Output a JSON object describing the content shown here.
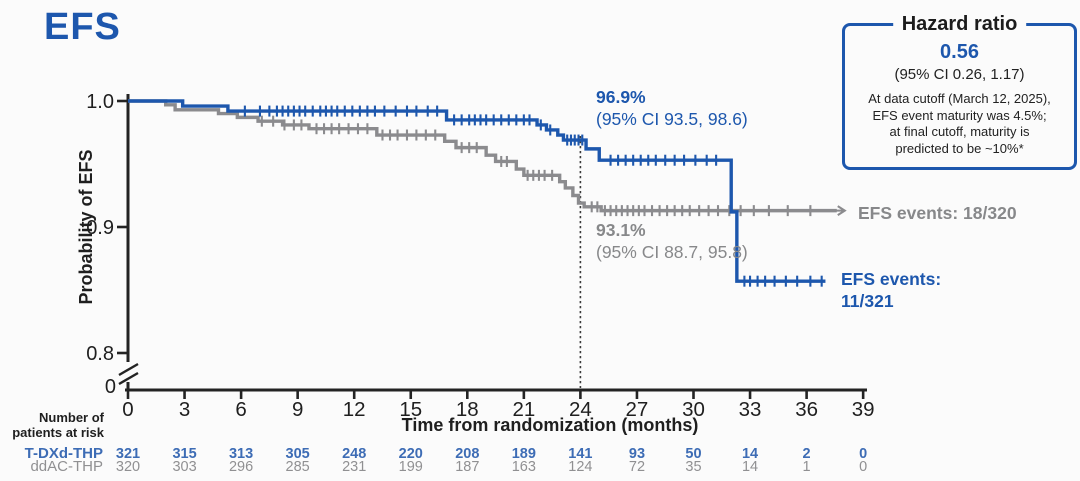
{
  "title": "EFS",
  "colors": {
    "blue": "#1d57ad",
    "gray": "#8b8b8e",
    "gray_text": "#87888a",
    "risk_blue": "#3d6cb5",
    "risk_gray": "#909092",
    "axis": "#232323",
    "background": "#fbfbfb"
  },
  "hazard_box": {
    "title": "Hazard ratio",
    "value": "0.56",
    "ci": "(95% CI 0.26, 1.17)",
    "note_lines": [
      "At data cutoff (March 12, 2025),",
      "EFS event maturity was 4.5%;",
      "at final cutoff, maturity is",
      "predicted to be ~10%*"
    ]
  },
  "chart_data": {
    "type": "line",
    "subtype": "kaplan-meier-step",
    "title": "EFS",
    "xlabel": "Time from randomization (months)",
    "ylabel": "Probability of EFS",
    "x_ticks": [
      0,
      3,
      6,
      9,
      12,
      15,
      18,
      21,
      24,
      27,
      30,
      33,
      36,
      39
    ],
    "y_ticks": [
      1.0,
      0.9,
      0.8
    ],
    "y_zero_label": "0",
    "y_axis_break": true,
    "ylim_shown": [
      0.8,
      1.0
    ],
    "landmark_month": 24,
    "series": [
      {
        "name": "T-DXd-THP",
        "color_key": "blue",
        "landmark_label": "96.9%",
        "landmark_ci": "(95% CI 93.5, 98.6)",
        "events_label_lines": [
          "EFS events:",
          "11/321"
        ],
        "events": "11/321",
        "end_month": 37.0,
        "end_arrow": false,
        "steps": [
          [
            0,
            1.0
          ],
          [
            2.9,
            0.996
          ],
          [
            5.3,
            0.992
          ],
          [
            16.9,
            0.985
          ],
          [
            21.7,
            0.981
          ],
          [
            22.2,
            0.977
          ],
          [
            22.8,
            0.973
          ],
          [
            23.1,
            0.969
          ],
          [
            24.3,
            0.962
          ],
          [
            25.0,
            0.953
          ],
          [
            32.0,
            0.912
          ],
          [
            32.3,
            0.857
          ]
        ],
        "censor_months": [
          6.2,
          7.0,
          7.5,
          7.9,
          8.2,
          8.5,
          8.8,
          9.1,
          9.4,
          9.8,
          10.2,
          10.5,
          10.8,
          11.1,
          11.5,
          11.9,
          12.3,
          12.7,
          13.1,
          13.6,
          14.2,
          14.8,
          15.3,
          15.9,
          16.4,
          17.3,
          17.7,
          18.1,
          18.4,
          18.7,
          19.0,
          19.4,
          19.8,
          20.2,
          20.6,
          21.0,
          21.3,
          21.9,
          22.4,
          23.3,
          23.5,
          23.7,
          23.9,
          24.1,
          25.6,
          26.0,
          26.4,
          26.8,
          27.2,
          27.6,
          28.0,
          28.5,
          29.0,
          29.5,
          30.1,
          30.7,
          31.2,
          32.7,
          33.0,
          33.4,
          33.8,
          34.3,
          34.9,
          35.5,
          36.2,
          36.8
        ]
      },
      {
        "name": "ddAC-THP",
        "color_key": "gray",
        "landmark_label": "93.1%",
        "landmark_ci": "(95% CI 88.7, 95.8)",
        "events_label_lines": [
          "EFS events: 18/320"
        ],
        "events": "18/320",
        "end_month": 37.6,
        "end_arrow": true,
        "steps": [
          [
            0,
            1.0
          ],
          [
            2.0,
            0.997
          ],
          [
            2.5,
            0.993
          ],
          [
            4.8,
            0.99
          ],
          [
            5.8,
            0.987
          ],
          [
            6.9,
            0.984
          ],
          [
            8.2,
            0.981
          ],
          [
            9.6,
            0.978
          ],
          [
            13.2,
            0.973
          ],
          [
            16.8,
            0.968
          ],
          [
            17.4,
            0.963
          ],
          [
            19.0,
            0.957
          ],
          [
            19.5,
            0.952
          ],
          [
            20.6,
            0.946
          ],
          [
            21.0,
            0.941
          ],
          [
            22.9,
            0.936
          ],
          [
            23.2,
            0.931
          ],
          [
            23.6,
            0.925
          ],
          [
            23.9,
            0.919
          ],
          [
            24.2,
            0.916
          ],
          [
            25.1,
            0.913
          ]
        ],
        "censor_months": [
          7.1,
          7.7,
          8.3,
          8.8,
          9.2,
          10.0,
          10.4,
          10.8,
          11.2,
          11.7,
          12.2,
          12.7,
          13.5,
          13.9,
          14.3,
          14.8,
          15.3,
          15.8,
          16.3,
          17.7,
          18.1,
          18.5,
          19.8,
          20.1,
          21.2,
          21.5,
          21.8,
          22.1,
          22.5,
          24.6,
          24.9,
          25.3,
          25.6,
          25.9,
          26.2,
          26.5,
          26.8,
          27.1,
          27.4,
          27.8,
          28.2,
          28.6,
          29.0,
          29.4,
          29.8,
          30.3,
          30.8,
          31.3,
          31.9,
          32.5,
          33.2,
          34.0,
          35.0,
          36.2
        ]
      }
    ],
    "risk_table": {
      "header_lines": [
        "Number of",
        "patients at risk"
      ],
      "rows": [
        {
          "name": "T-DXd-THP",
          "values": [
            321,
            315,
            313,
            305,
            248,
            220,
            208,
            189,
            141,
            93,
            50,
            14,
            2,
            0
          ]
        },
        {
          "name": "ddAC-THP",
          "values": [
            320,
            303,
            296,
            285,
            231,
            199,
            187,
            163,
            124,
            72,
            35,
            14,
            1,
            0
          ]
        }
      ]
    }
  }
}
